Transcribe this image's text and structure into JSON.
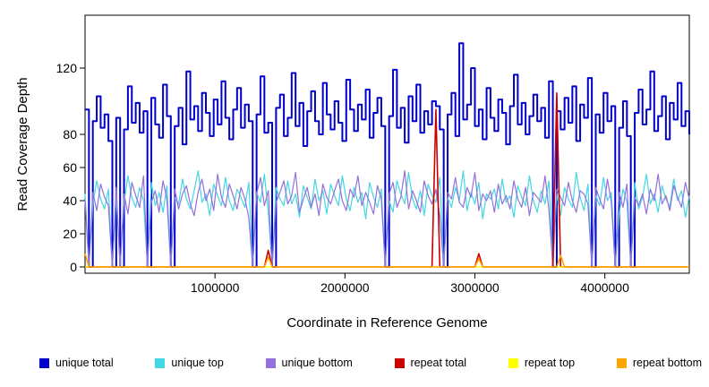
{
  "figure": {
    "background": "#FFFFFF"
  },
  "chart_data": {
    "type": "line",
    "title": "",
    "xlabel": "Coordinate in Reference Genome",
    "ylabel": "Read Coverage Depth",
    "xlim": [
      0,
      4650000
    ],
    "ylim": [
      0,
      140
    ],
    "x_ticks": [
      1000000,
      2000000,
      3000000,
      4000000
    ],
    "y_ticks": [
      0,
      20,
      40,
      60,
      80,
      120
    ],
    "grid": false,
    "legend_position": "bottom",
    "x_start": 0,
    "x_step": 30000,
    "n_points": 156,
    "series": [
      {
        "name": "unique total",
        "color": "#0000CD",
        "width": 2,
        "step": true,
        "values": [
          95,
          0,
          88,
          103,
          84,
          92,
          76,
          0,
          90,
          0,
          83,
          109,
          87,
          99,
          81,
          94,
          0,
          102,
          86,
          78,
          110,
          91,
          0,
          85,
          96,
          74,
          118,
          89,
          97,
          82,
          105,
          93,
          79,
          101,
          86,
          112,
          90,
          77,
          95,
          108,
          84,
          98,
          88,
          0,
          92,
          115,
          81,
          87,
          0,
          96,
          104,
          79,
          90,
          117,
          85,
          99,
          73,
          94,
          106,
          88,
          80,
          111,
          92,
          83,
          100,
          87,
          76,
          113,
          95,
          82,
          98,
          89,
          107,
          78,
          93,
          102,
          85,
          0,
          91,
          119,
          84,
          96,
          75,
          103,
          88,
          110,
          81,
          94,
          86,
          100,
          97,
          83,
          0,
          92,
          105,
          79,
          135,
          89,
          98,
          120,
          85,
          95,
          77,
          108,
          90,
          82,
          101,
          93,
          74,
          97,
          116,
          86,
          99,
          80,
          91,
          104,
          88,
          96,
          78,
          112,
          0,
          94,
          83,
          102,
          87,
          109,
          76,
          98,
          90,
          114,
          0,
          92,
          81,
          105,
          88,
          97,
          0,
          84,
          100,
          79,
          0,
          93,
          107,
          86,
          95,
          118,
          82,
          91,
          103,
          77,
          99,
          89,
          111,
          85,
          94,
          80
        ]
      },
      {
        "name": "unique top",
        "color": "#44D7E4",
        "width": 1.2,
        "step": false,
        "values": [
          44,
          0,
          38,
          52,
          41,
          35,
          47,
          0,
          43,
          0,
          39,
          55,
          42,
          36,
          48,
          40,
          0,
          51,
          37,
          45,
          33,
          49,
          0,
          42,
          38,
          53,
          41,
          35,
          46,
          58,
          39,
          44,
          31,
          50,
          43,
          37,
          54,
          40,
          34,
          47,
          42,
          36,
          51,
          0,
          45,
          39,
          56,
          33,
          0,
          48,
          41,
          37,
          52,
          38,
          44,
          30,
          49,
          42,
          35,
          53,
          40,
          46,
          32,
          50,
          43,
          37,
          55,
          41,
          34,
          48,
          39,
          45,
          29,
          51,
          42,
          36,
          47,
          0,
          40,
          33,
          52,
          44,
          38,
          57,
          41,
          35,
          46,
          31,
          50,
          43,
          39,
          54,
          0,
          42,
          36,
          48,
          40,
          58,
          34,
          45,
          38,
          51,
          29,
          44,
          41,
          47,
          35,
          53,
          39,
          43,
          30,
          49,
          42,
          37,
          55,
          40,
          33,
          46,
          38,
          52,
          0,
          44,
          31,
          48,
          41,
          36,
          57,
          42,
          34,
          50,
          0,
          43,
          37,
          54,
          40,
          45,
          0,
          32,
          47,
          39,
          0,
          51,
          35,
          42,
          56,
          38,
          44,
          33,
          49,
          41,
          36,
          53,
          40,
          46,
          30,
          43
        ]
      },
      {
        "name": "unique bottom",
        "color": "#9370DB",
        "width": 1.2,
        "step": false,
        "values": [
          40,
          0,
          45,
          34,
          50,
          42,
          37,
          0,
          48,
          0,
          44,
          32,
          51,
          43,
          36,
          55,
          0,
          39,
          46,
          33,
          52,
          41,
          0,
          47,
          35,
          44,
          49,
          38,
          31,
          45,
          53,
          40,
          47,
          34,
          56,
          42,
          36,
          50,
          43,
          35,
          48,
          41,
          30,
          0,
          44,
          54,
          37,
          46,
          0,
          39,
          45,
          52,
          38,
          43,
          57,
          33,
          41,
          48,
          36,
          44,
          31,
          50,
          42,
          38,
          46,
          53,
          40,
          34,
          47,
          42,
          55,
          37,
          45,
          39,
          32,
          49,
          41,
          0,
          44,
          51,
          36,
          42,
          58,
          35,
          46,
          40,
          33,
          52,
          43,
          38,
          47,
          31,
          0,
          45,
          41,
          54,
          39,
          36,
          48,
          42,
          57,
          34,
          44,
          40,
          46,
          33,
          50,
          38,
          43,
          35,
          52,
          41,
          36,
          48,
          31,
          45,
          42,
          39,
          55,
          34,
          0,
          47,
          42,
          37,
          51,
          40,
          33,
          46,
          44,
          38,
          0,
          48,
          41,
          35,
          53,
          39,
          0,
          45,
          36,
          50,
          0,
          42,
          37,
          44,
          32,
          47,
          40,
          56,
          38,
          43,
          34,
          49,
          42,
          36,
          51,
          41
        ]
      },
      {
        "name": "repeat total",
        "color": "#CD0000",
        "width": 1.6,
        "step": false,
        "sparse": {
          "47": 10,
          "90": 95,
          "101": 8,
          "121": 105
        }
      },
      {
        "name": "repeat top",
        "color": "#FFFF00",
        "width": 1.2,
        "step": false,
        "sparse": {}
      },
      {
        "name": "repeat bottom",
        "color": "#FFA500",
        "width": 1.6,
        "step": false,
        "sparse": {
          "0": 8,
          "47": 6,
          "101": 5,
          "122": 7
        }
      }
    ]
  }
}
